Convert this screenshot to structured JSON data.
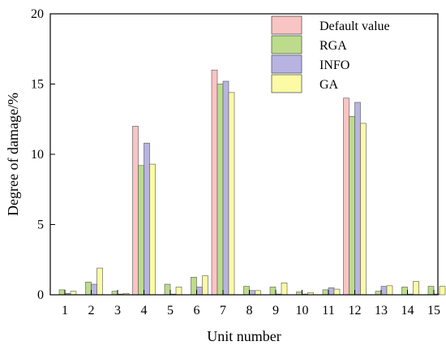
{
  "chart_data": {
    "type": "bar",
    "xlabel": "Unit number",
    "ylabel": "Degree of damage/%",
    "ylim": [
      0,
      20
    ],
    "yticks": [
      0,
      5,
      10,
      15,
      20
    ],
    "categories": [
      "1",
      "2",
      "3",
      "4",
      "5",
      "6",
      "7",
      "8",
      "9",
      "10",
      "11",
      "12",
      "13",
      "14",
      "15"
    ],
    "legend_position": "top-right",
    "grid": false,
    "series": [
      {
        "name": "Default value",
        "color": "#f9c4c4",
        "values": [
          0.0,
          0.0,
          0.0,
          12.0,
          0.0,
          0.0,
          16.0,
          0.0,
          0.0,
          0.0,
          0.0,
          14.0,
          0.0,
          0.0,
          0.0
        ]
      },
      {
        "name": "RGA",
        "color": "#bcdc8c",
        "values": [
          0.35,
          0.9,
          0.25,
          9.2,
          0.75,
          1.25,
          15.0,
          0.6,
          0.55,
          0.2,
          0.35,
          12.7,
          0.25,
          0.55,
          0.6
        ]
      },
      {
        "name": "INFO",
        "color": "#b8b4e2",
        "values": [
          0.1,
          0.75,
          0.05,
          10.8,
          0.05,
          0.55,
          15.2,
          0.3,
          0.05,
          0.05,
          0.5,
          13.7,
          0.6,
          0.05,
          0.05
        ]
      },
      {
        "name": "GA",
        "color": "#fbfba6",
        "values": [
          0.25,
          1.9,
          0.1,
          9.3,
          0.55,
          1.35,
          14.4,
          0.3,
          0.85,
          0.15,
          0.4,
          12.2,
          0.65,
          0.95,
          0.6
        ]
      }
    ]
  }
}
